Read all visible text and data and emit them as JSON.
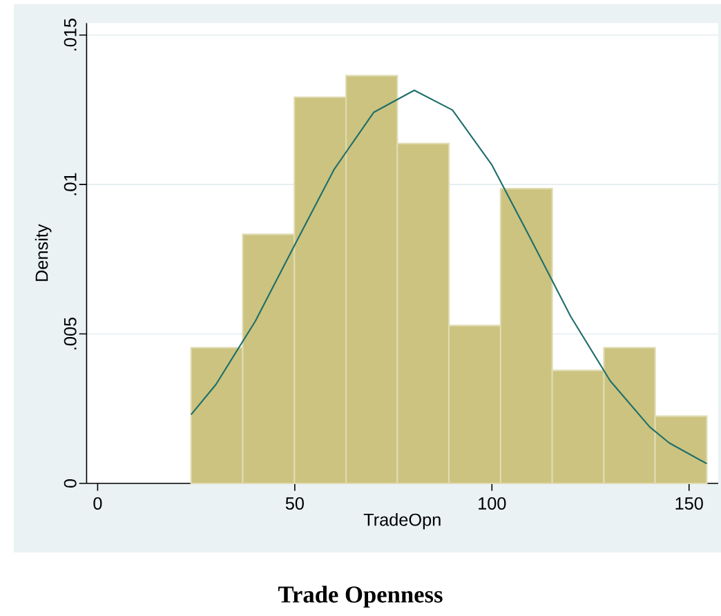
{
  "chart_data": {
    "type": "histogram",
    "title": "Trade Openness",
    "xlabel": "TradeOpn",
    "ylabel": "Density",
    "bins": [
      23.7,
      36.8,
      49.9,
      63.0,
      76.0,
      89.1,
      102.2,
      115.3,
      128.4,
      141.4,
      154.5
    ],
    "values": [
      0.00454,
      0.00833,
      0.01292,
      0.01364,
      0.01137,
      0.00528,
      0.00986,
      0.00378,
      0.00454,
      0.00225
    ],
    "color": "#cbc37f",
    "series": [
      {
        "type": "line",
        "color": "#1f6e6b",
        "x": [
          23.7,
          30,
          40,
          50,
          60,
          70,
          80.3,
          90,
          100,
          110,
          120,
          130,
          140,
          145,
          154.5
        ],
        "values": [
          0.0023,
          0.00331,
          0.00543,
          0.00798,
          0.01051,
          0.01241,
          0.01315,
          0.01249,
          0.01065,
          0.00814,
          0.00558,
          0.00343,
          0.00189,
          0.00135,
          0.00066
        ]
      }
    ],
    "xlim": [
      -2.8,
      157.4
    ],
    "ylim": [
      0,
      0.0154
    ],
    "xticks": [
      0,
      50,
      100,
      150
    ],
    "yticks": [
      0,
      {
        "value": 0.005,
        "label": ".005"
      },
      {
        "value": 0.01,
        "label": ".01"
      },
      {
        "value": 0.015,
        "label": ".015"
      }
    ],
    "grid": "y"
  }
}
